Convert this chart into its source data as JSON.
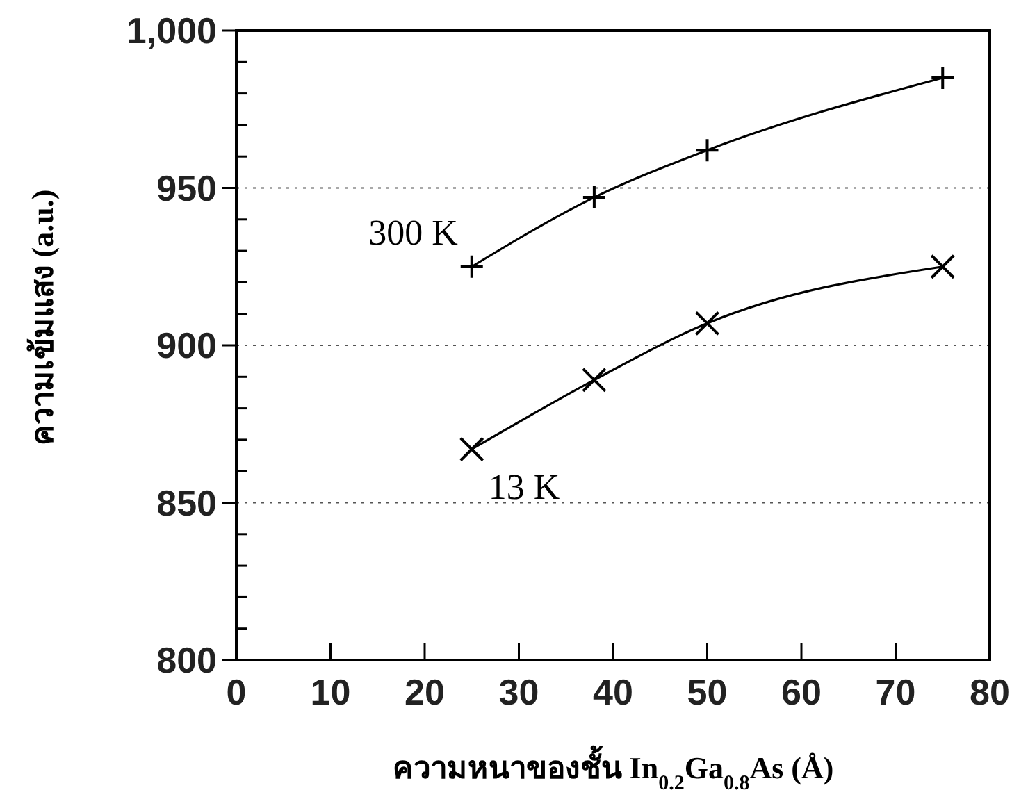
{
  "chart_data": {
    "type": "line",
    "xlabel": "ความหนาของชั้น In$_{0.2}$Ga$_{0.8}$As  (Å)",
    "ylabel": "ความเข้มแสง (a.u.)",
    "xlim": [
      0,
      80
    ],
    "xticks": [
      0,
      10,
      20,
      30,
      40,
      50,
      60,
      70,
      80
    ],
    "ylim": [
      800,
      1000
    ],
    "yticks": [
      800,
      {
        "value": 810,
        "label": null
      },
      {
        "value": 820,
        "label": null
      },
      {
        "value": 830,
        "label": null
      },
      {
        "value": 840,
        "label": null
      },
      850,
      {
        "value": 860,
        "label": null
      },
      {
        "value": 870,
        "label": null
      },
      {
        "value": 880,
        "label": null
      },
      {
        "value": 890,
        "label": null
      },
      900,
      {
        "value": 910,
        "label": null
      },
      {
        "value": 920,
        "label": null
      },
      {
        "value": 930,
        "label": null
      },
      {
        "value": 940,
        "label": null
      },
      950,
      {
        "value": 960,
        "label": null
      },
      {
        "value": 970,
        "label": null
      },
      {
        "value": 980,
        "label": null
      },
      {
        "value": 990,
        "label": null
      },
      {
        "value": 1000,
        "label": "1,000"
      }
    ],
    "grid": "y",
    "line_style": "solid",
    "series": [
      {
        "name": "300 K",
        "color": "#000000",
        "marker": "plus",
        "x": [
          25,
          38,
          50,
          75
        ],
        "values": [
          925,
          947,
          962,
          985
        ]
      },
      {
        "name": "13 K",
        "color": "#000000",
        "marker": "cross",
        "x": [
          25,
          38,
          50,
          75
        ],
        "values": [
          867,
          889,
          907,
          925
        ]
      }
    ]
  }
}
